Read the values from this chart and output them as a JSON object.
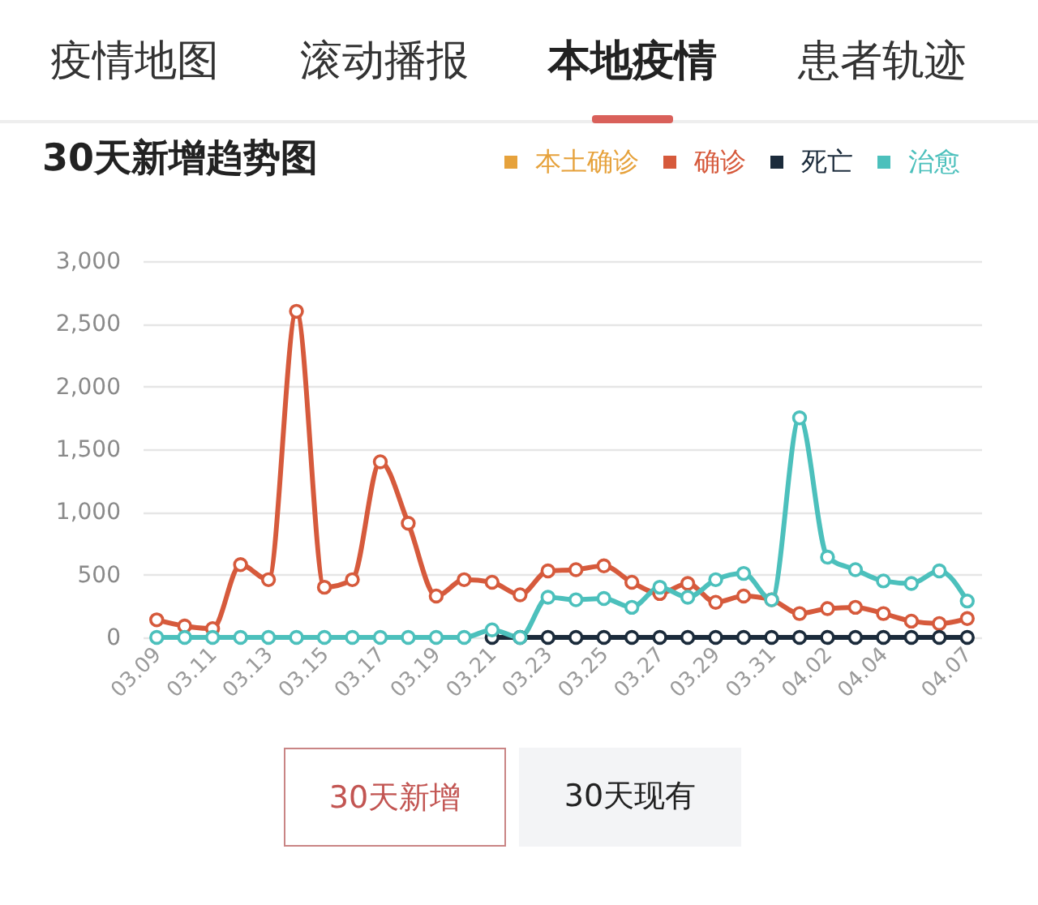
{
  "chart_data": {
    "type": "line",
    "title": "30天新增趋势图",
    "annotations": [
      "疫情地图",
      "滚动播报",
      "本地疫情",
      "患者轨迹",
      "30天新增",
      "30天现有"
    ],
    "categories": [
      "03.09",
      null,
      "03.11",
      null,
      "03.13",
      null,
      "03.15",
      null,
      "03.17",
      null,
      "03.19",
      null,
      "03.21",
      null,
      "03.23",
      null,
      "03.25",
      null,
      "03.27",
      null,
      "03.29",
      null,
      "03.31",
      null,
      "04.02",
      null,
      "04.04",
      null,
      null,
      "04.07"
    ],
    "series": [
      {
        "name": "本土确诊",
        "color": "#e6a23c",
        "values": [
          null,
          null,
          null,
          null,
          null,
          null,
          null,
          null,
          null,
          null,
          null,
          null,
          null,
          null,
          null,
          null,
          null,
          null,
          null,
          null,
          null,
          null,
          null,
          null,
          null,
          null,
          null,
          null,
          null,
          null
        ]
      },
      {
        "name": "确诊",
        "color": "#d65a3c",
        "values": [
          140,
          90,
          70,
          580,
          460,
          2600,
          400,
          460,
          1400,
          910,
          330,
          460,
          440,
          340,
          530,
          540,
          570,
          440,
          350,
          430,
          280,
          330,
          300,
          190,
          230,
          240,
          190,
          130,
          110,
          150
        ]
      },
      {
        "name": "死亡",
        "color": "#1b2b3b",
        "values": [
          null,
          null,
          null,
          null,
          null,
          null,
          null,
          null,
          null,
          null,
          null,
          null,
          0,
          0,
          0,
          0,
          0,
          0,
          0,
          0,
          0,
          0,
          0,
          0,
          0,
          0,
          0,
          0,
          0,
          0
        ]
      },
      {
        "name": "治愈",
        "color": "#4cc0bc",
        "values": [
          0,
          0,
          0,
          0,
          0,
          0,
          0,
          0,
          0,
          0,
          0,
          0,
          60,
          0,
          320,
          300,
          310,
          240,
          400,
          320,
          460,
          510,
          300,
          1750,
          640,
          540,
          450,
          430,
          530,
          290
        ]
      }
    ],
    "ylim": [
      0,
      3000
    ],
    "yticks": [
      0,
      500,
      {
        "value": 1000,
        "label": "1,000"
      },
      {
        "value": 1500,
        "label": "1,500"
      },
      {
        "value": 2000,
        "label": "2,000"
      },
      {
        "value": 2500,
        "label": "2,500"
      },
      {
        "value": 3000,
        "label": "3,000"
      }
    ],
    "grid": "y",
    "legend": "top right",
    "marker": "circle"
  }
}
